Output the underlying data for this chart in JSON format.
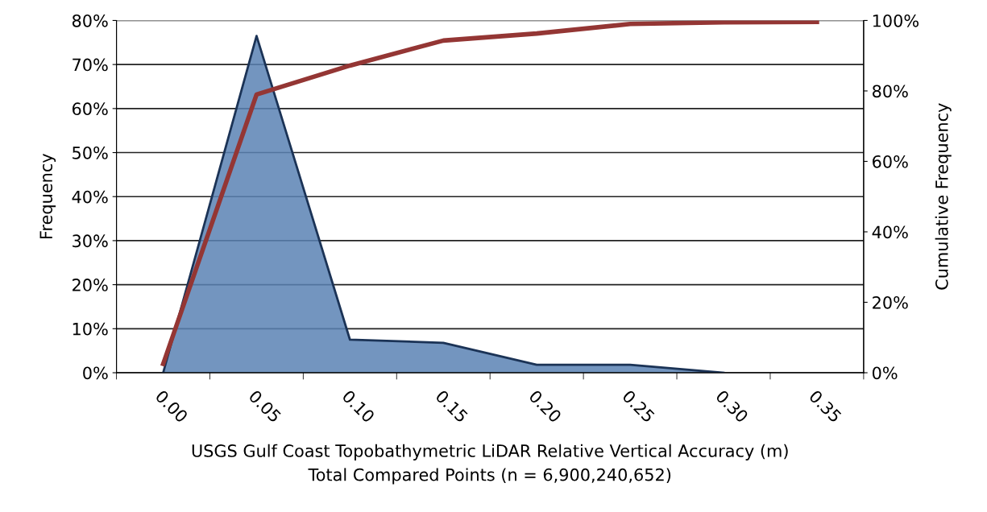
{
  "chart_data": {
    "type": "area",
    "xlabel": "USGS Gulf Coast Topobathymetric LiDAR Relative Vertical Accuracy (m)\nTotal Compared Points (n = 6,900,240,652)",
    "ylabel": "Frequency",
    "y2label": "Cumulative Frequency",
    "categories": [
      "0.00",
      "0.05",
      "0.10",
      "0.15",
      "0.20",
      "0.25",
      "0.30",
      "0.35"
    ],
    "series": [
      {
        "color": "#5a82b4",
        "values": [
          0,
          76.5,
          7.5,
          6.8,
          1.8,
          1.8,
          0,
          null
        ]
      },
      {
        "type": "line",
        "axis": "y2",
        "color": "#943634",
        "values": [
          2.5,
          79,
          87.2,
          94.3,
          96.3,
          99,
          99.5,
          99.6
        ]
      }
    ],
    "ylim": [
      0,
      80
    ],
    "yticks": [
      {
        "value": 0,
        "label": "0%"
      },
      {
        "value": 10,
        "label": "10%"
      },
      {
        "value": 20,
        "label": "20%"
      },
      {
        "value": 30,
        "label": "30%"
      },
      {
        "value": 40,
        "label": "40%"
      },
      {
        "value": 50,
        "label": "50%"
      },
      {
        "value": 60,
        "label": "60%"
      },
      {
        "value": 70,
        "label": "70%"
      },
      {
        "value": 80,
        "label": "80%"
      }
    ],
    "y2lim": [
      0,
      100
    ],
    "y2ticks": [
      {
        "value": 0,
        "label": "0%"
      },
      {
        "value": 20,
        "label": "20%"
      },
      {
        "value": 40,
        "label": "40%"
      },
      {
        "value": 60,
        "label": "60%"
      },
      {
        "value": 80,
        "label": "80%"
      },
      {
        "value": 100,
        "label": "100%"
      }
    ],
    "grid": "y",
    "line_style": "solid",
    "marker": "none"
  }
}
